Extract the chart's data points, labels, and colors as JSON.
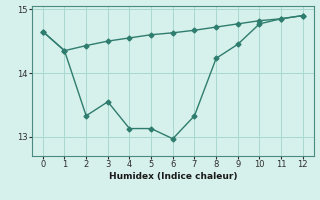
{
  "line1_x": [
    0,
    1,
    2,
    3,
    4,
    5,
    6,
    7,
    8,
    9,
    10,
    11,
    12
  ],
  "line1_y": [
    14.65,
    14.35,
    14.43,
    14.5,
    14.55,
    14.6,
    14.63,
    14.67,
    14.72,
    14.77,
    14.82,
    14.85,
    14.9
  ],
  "line2_x": [
    0,
    1,
    2,
    3,
    4,
    5,
    6,
    7,
    8,
    9,
    10,
    11,
    12
  ],
  "line2_y": [
    14.65,
    14.35,
    13.33,
    13.55,
    13.13,
    13.13,
    12.97,
    13.33,
    14.23,
    14.45,
    14.77,
    14.85,
    14.9
  ],
  "color": "#2e7d6e",
  "background_color": "#d6f0eb",
  "grid_color": "#a8d8d0",
  "xlabel": "Humidex (Indice chaleur)",
  "xlim": [
    -0.5,
    12.5
  ],
  "ylim": [
    12.7,
    15.05
  ],
  "yticks": [
    13,
    14,
    15
  ],
  "xticks": [
    0,
    1,
    2,
    3,
    4,
    5,
    6,
    7,
    8,
    9,
    10,
    11,
    12
  ],
  "marker": "D",
  "markersize": 2.5,
  "linewidth": 1.0
}
